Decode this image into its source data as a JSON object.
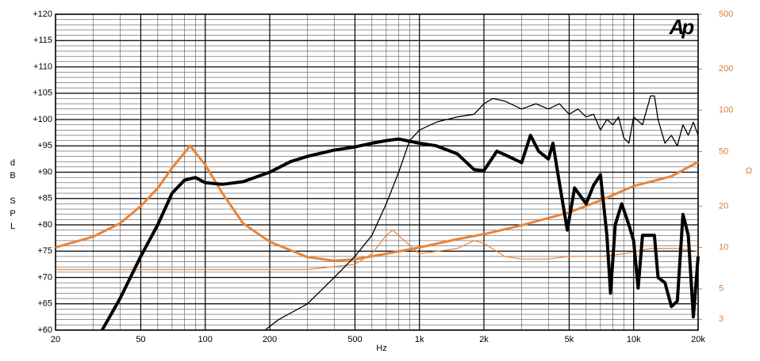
{
  "chart_data": {
    "type": "line",
    "logo": "Ap",
    "xlabel": "Hz",
    "ylabel": "dB SPL",
    "y2label": "Ω",
    "xlog": true,
    "y2log": true,
    "grid": true,
    "minor_grid": true,
    "xlim": [
      20,
      20000
    ],
    "xticks": [
      20,
      50,
      100,
      200,
      500,
      {
        "value": 1000,
        "label": "1k"
      },
      {
        "value": 2000,
        "label": "2k"
      },
      {
        "value": 5000,
        "label": "5k"
      },
      {
        "value": 10000,
        "label": "10k"
      },
      {
        "value": 20000,
        "label": "20k"
      }
    ],
    "ylim": [
      60,
      120
    ],
    "yticks": [
      {
        "value": 60,
        "label": "+60"
      },
      {
        "value": 65,
        "label": "+65"
      },
      {
        "value": 70,
        "label": "+70"
      },
      {
        "value": 75,
        "label": "+75"
      },
      {
        "value": 80,
        "label": "+80"
      },
      {
        "value": 85,
        "label": "+85"
      },
      {
        "value": 90,
        "label": "+90"
      },
      {
        "value": 95,
        "label": "+95"
      },
      {
        "value": 100,
        "label": "+100"
      },
      {
        "value": 105,
        "label": "+105"
      },
      {
        "value": 110,
        "label": "+110"
      },
      {
        "value": 115,
        "label": "+115"
      },
      {
        "value": 120,
        "label": "+120"
      }
    ],
    "y2lim": [
      2.5,
      500
    ],
    "y2ticks": [
      3,
      5,
      10,
      20,
      50,
      100,
      200,
      500
    ],
    "y2color": "#e07b2e",
    "series": [
      {
        "color": "#000000",
        "width": 4,
        "x": [
          33,
          40,
          50,
          60,
          70,
          80,
          90,
          100,
          120,
          150,
          200,
          250,
          300,
          400,
          500,
          600,
          700,
          800,
          1000,
          1200,
          1500,
          1800,
          2000,
          2300,
          2600,
          3000,
          3300,
          3600,
          4000,
          4200,
          4500,
          4900,
          5300,
          6000,
          6500,
          7000,
          7500,
          7800,
          8200,
          8800,
          9500,
          10000,
          10500,
          11000,
          12500,
          13000,
          14000,
          15000,
          16000,
          17000,
          18000,
          19000,
          20000
        ],
        "values": [
          60,
          66,
          74,
          80,
          86,
          88.5,
          89,
          88,
          87.7,
          88.2,
          90,
          92,
          93,
          94.2,
          94.8,
          95.5,
          96,
          96.3,
          95.5,
          95,
          93.5,
          90.5,
          90.3,
          94,
          93,
          91.8,
          97,
          94,
          92.5,
          95.5,
          88,
          79,
          87,
          84,
          87.5,
          89.5,
          78,
          67,
          80,
          84,
          80,
          77,
          68,
          78,
          78,
          70,
          69,
          64.5,
          65.5,
          82,
          78,
          62.5,
          74
        ]
      },
      {
        "color": "#000000",
        "width": 1.3,
        "x": [
          190,
          220,
          300,
          400,
          500,
          600,
          700,
          800,
          900,
          1000,
          1200,
          1500,
          1800,
          2000,
          2200,
          2500,
          3000,
          3500,
          4000,
          4500,
          5000,
          5500,
          6000,
          6500,
          7000,
          7500,
          8000,
          8500,
          9000,
          9500,
          10000,
          11000,
          12000,
          12500,
          13000,
          14000,
          15000,
          16000,
          17000,
          18000,
          19000,
          20000
        ],
        "values": [
          60,
          62,
          65,
          70,
          74,
          78,
          84,
          90,
          96,
          98,
          99.5,
          100.5,
          101,
          103,
          104,
          103.5,
          102,
          103,
          102,
          103,
          101,
          102,
          100.5,
          101,
          98,
          100,
          99,
          100.5,
          96.5,
          95.5,
          100.5,
          99,
          104.5,
          104.5,
          100,
          95.5,
          97,
          95,
          99,
          97,
          99.5,
          97
        ]
      },
      {
        "color": "#e8843a",
        "width": 3,
        "axis": "y2",
        "x": [
          20,
          30,
          40,
          50,
          60,
          70,
          85,
          100,
          120,
          150,
          200,
          300,
          400,
          500,
          700,
          1000,
          1500,
          2000,
          3000,
          5000,
          7000,
          10000,
          15000,
          20000
        ],
        "values": [
          10,
          12,
          15,
          20,
          27,
          38,
          55,
          40,
          25,
          15,
          11,
          8.5,
          8,
          8.2,
          9,
          10,
          11.5,
          12.5,
          14.5,
          18,
          22,
          28,
          33,
          42
        ]
      },
      {
        "color": "#e8843a",
        "width": 1.2,
        "x": [
          20,
          300,
          500,
          600,
          700,
          750,
          850,
          1000,
          1500,
          1800,
          2000,
          2500,
          3000,
          4000,
          5000,
          7000,
          9000,
          12000,
          16000,
          20000
        ],
        "values": [
          71.5,
          71.5,
          72.5,
          74.5,
          78,
          79,
          77,
          74.5,
          75.5,
          77,
          76.5,
          74,
          73.5,
          73.5,
          74,
          74,
          74.5,
          75.5,
          75.5,
          75
        ]
      }
    ]
  }
}
